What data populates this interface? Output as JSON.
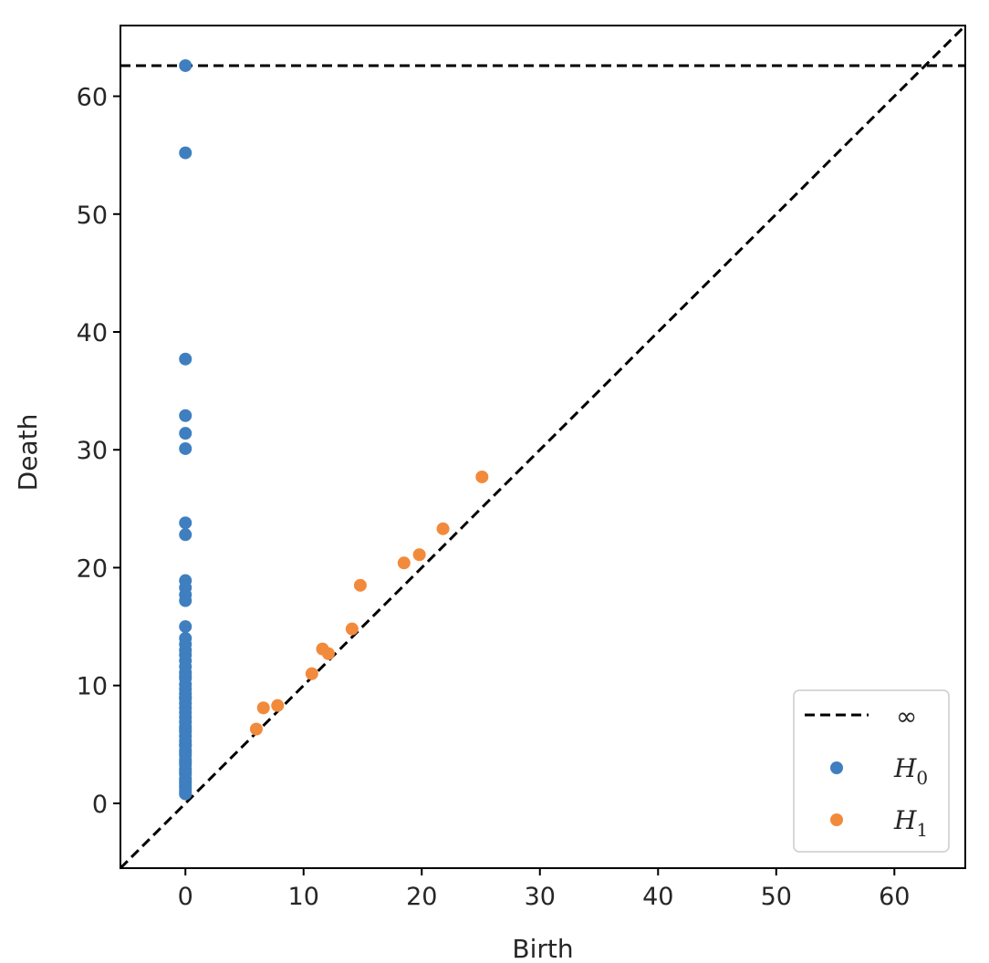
{
  "chart_data": {
    "type": "scatter",
    "xlabel": "Birth",
    "ylabel": "Death",
    "xlim": [
      -5.5,
      66
    ],
    "ylim": [
      -5.5,
      66
    ],
    "xticks": [
      0,
      10,
      20,
      30,
      40,
      50,
      60
    ],
    "yticks": [
      0,
      10,
      20,
      30,
      40,
      50,
      60
    ],
    "grid": false,
    "legend_position": "bottom-right",
    "infinity_line": {
      "label": "∞",
      "y": 62.6,
      "color": "#000000"
    },
    "diagonal": {
      "style": "dashed",
      "color": "#000000"
    },
    "series": [
      {
        "name": "H",
        "subscript": "0",
        "color": "#3f7fbf",
        "x": [
          0,
          0,
          0,
          0,
          0,
          0,
          0,
          0,
          0,
          0,
          0,
          0,
          0,
          0,
          0,
          0,
          0,
          0,
          0,
          0,
          0,
          0,
          0,
          0,
          0,
          0,
          0,
          0,
          0,
          0,
          0,
          0,
          0,
          0,
          0,
          0,
          0,
          0,
          0,
          0,
          0,
          0,
          0,
          0,
          0,
          0,
          0,
          0,
          0,
          0,
          0,
          0,
          0,
          0,
          0
        ],
        "y": [
          62.6,
          55.2,
          37.7,
          32.9,
          31.4,
          30.1,
          23.8,
          22.8,
          18.9,
          18.3,
          17.7,
          17.2,
          15.0,
          14.0,
          13.5,
          13.0,
          12.6,
          12.1,
          11.6,
          11.1,
          10.6,
          10.1,
          9.7,
          9.3,
          8.9,
          8.5,
          8.1,
          7.7,
          7.3,
          6.9,
          6.5,
          6.1,
          5.7,
          5.3,
          4.9,
          4.5,
          4.1,
          3.7,
          3.3,
          2.9,
          2.5,
          2.1,
          1.7,
          1.3,
          1.0,
          0.8,
          6.3,
          5.0,
          4.3,
          3.5,
          2.7,
          1.9,
          1.5,
          9.0,
          10.8
        ]
      },
      {
        "name": "H",
        "subscript": "1",
        "color": "#f28a3c",
        "x": [
          6.0,
          6.6,
          7.8,
          10.7,
          11.6,
          12.1,
          14.1,
          14.8,
          18.5,
          19.8,
          21.8,
          25.1
        ],
        "y": [
          6.3,
          8.1,
          8.3,
          11.0,
          13.1,
          12.7,
          14.8,
          18.5,
          20.4,
          21.1,
          23.3,
          27.7
        ]
      }
    ]
  }
}
